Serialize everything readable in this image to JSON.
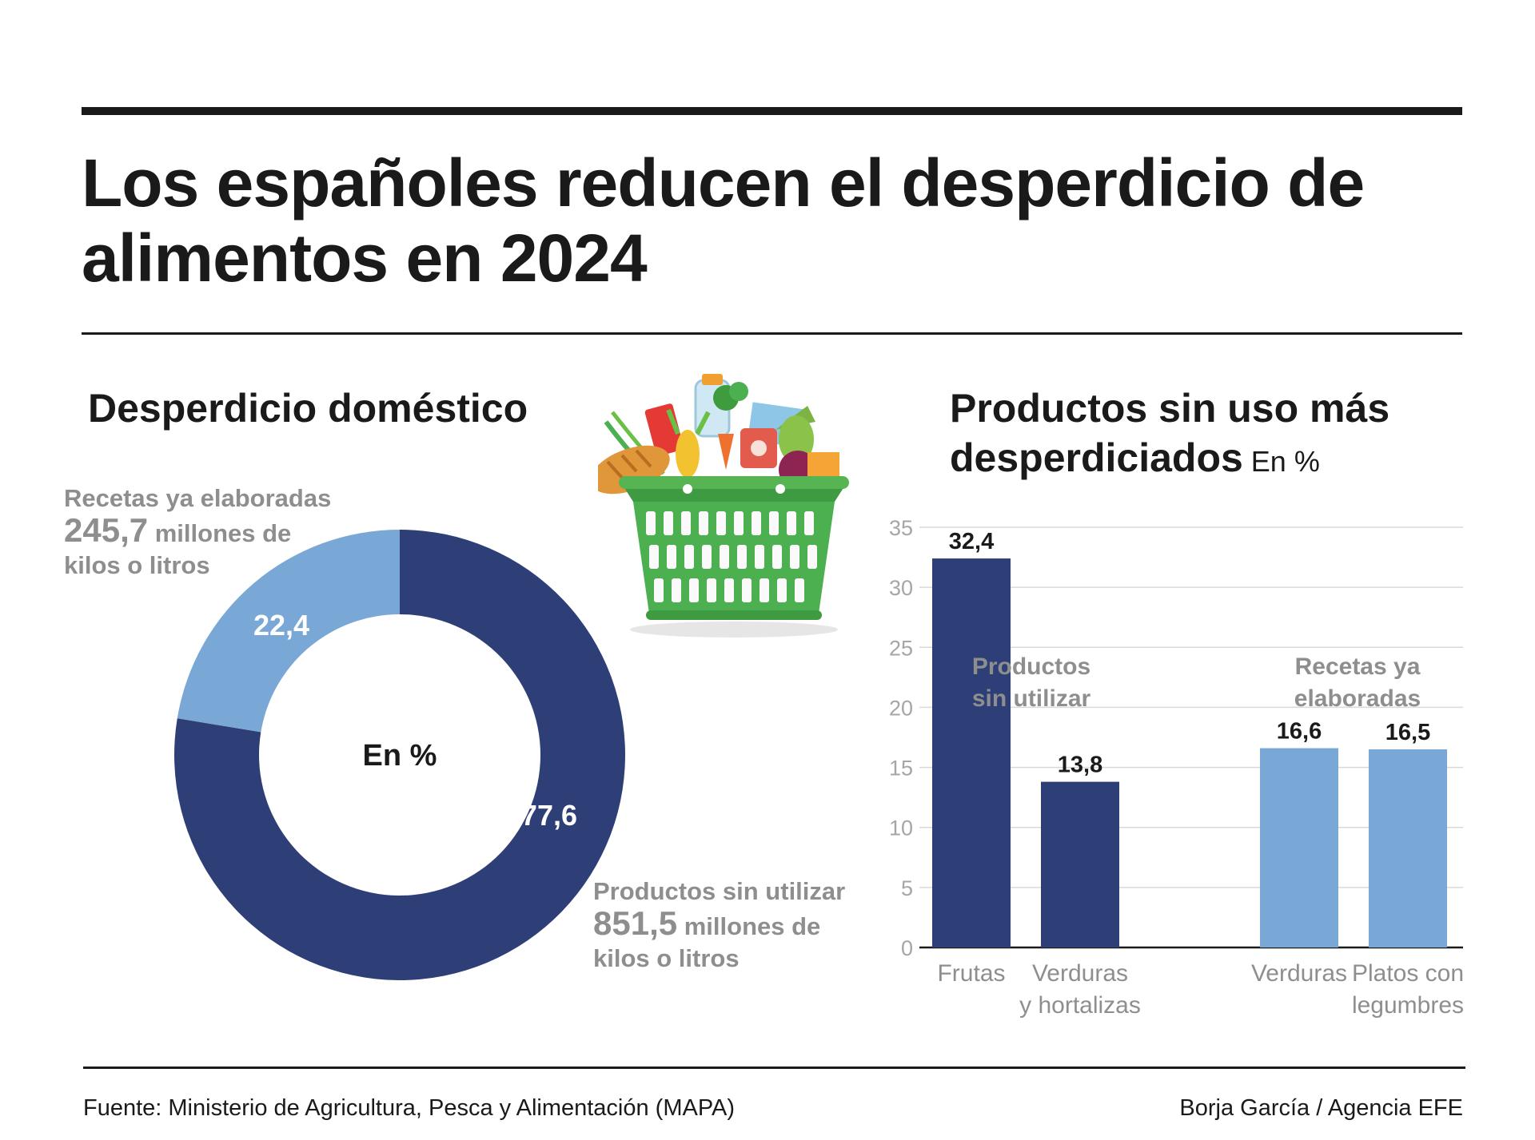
{
  "title": "Los españoles reducen el desperdicio de alimentos en 2024",
  "colors": {
    "dark_blue": "#2e3f78",
    "light_blue": "#79a8d7",
    "grey_text": "#8e8e8e",
    "grid": "#d9d9d9"
  },
  "left_section": {
    "title": "Desperdicio doméstico",
    "illustration": "shopping-basket-with-groceries",
    "center_label": "En %",
    "callout_recetas": {
      "name": "Recetas ya elaboradas",
      "amount": "245,7",
      "unit_line1": "millones de",
      "unit_line2": "kilos o litros"
    },
    "callout_productos": {
      "name": "Productos sin utilizar",
      "amount": "851,5",
      "unit_line1": "millones de",
      "unit_line2": "kilos o litros"
    }
  },
  "right_section": {
    "title_line1": "Productos sin uso más",
    "title_line2": "desperdiciados",
    "unit": "En %",
    "group_labels": [
      {
        "line1": "Productos",
        "line2": "sin utilizar"
      },
      {
        "line1": "Recetas ya",
        "line2": "elaboradas"
      }
    ]
  },
  "chart_data": [
    {
      "type": "pie",
      "variant": "donut",
      "center_label": "En %",
      "slices": [
        {
          "label": "Productos sin utilizar",
          "value": 77.6,
          "value_label": "77,6",
          "color": "#2e3f78"
        },
        {
          "label": "Recetas ya elaboradas",
          "value": 22.4,
          "value_label": "22,4",
          "color": "#79a8d7"
        }
      ]
    },
    {
      "type": "bar",
      "title": "Productos sin uso más desperdiciados",
      "ylabel": "En %",
      "ylim": [
        0,
        35
      ],
      "yticks": [
        0,
        5,
        10,
        15,
        20,
        25,
        30,
        35
      ],
      "grid": true,
      "bars": [
        {
          "group": "Productos sin utilizar",
          "category_line1": "Frutas",
          "category_line2": "",
          "value": 32.4,
          "value_label": "32,4",
          "color": "#2e3f78"
        },
        {
          "group": "Productos sin utilizar",
          "category_line1": "Verduras",
          "category_line2": "y hortalizas",
          "value": 13.8,
          "value_label": "13,8",
          "color": "#2e3f78"
        },
        {
          "group": "Recetas ya elaboradas",
          "category_line1": "Verduras",
          "category_line2": "",
          "value": 16.6,
          "value_label": "16,6",
          "color": "#79a8d7"
        },
        {
          "group": "Recetas ya elaboradas",
          "category_line1": "Platos con",
          "category_line2": "legumbres",
          "value": 16.5,
          "value_label": "16,5",
          "color": "#79a8d7"
        }
      ]
    }
  ],
  "footer": {
    "source": "Fuente: Ministerio de Agricultura, Pesca y Alimentación (MAPA)",
    "credit": "Borja García / Agencia EFE"
  }
}
